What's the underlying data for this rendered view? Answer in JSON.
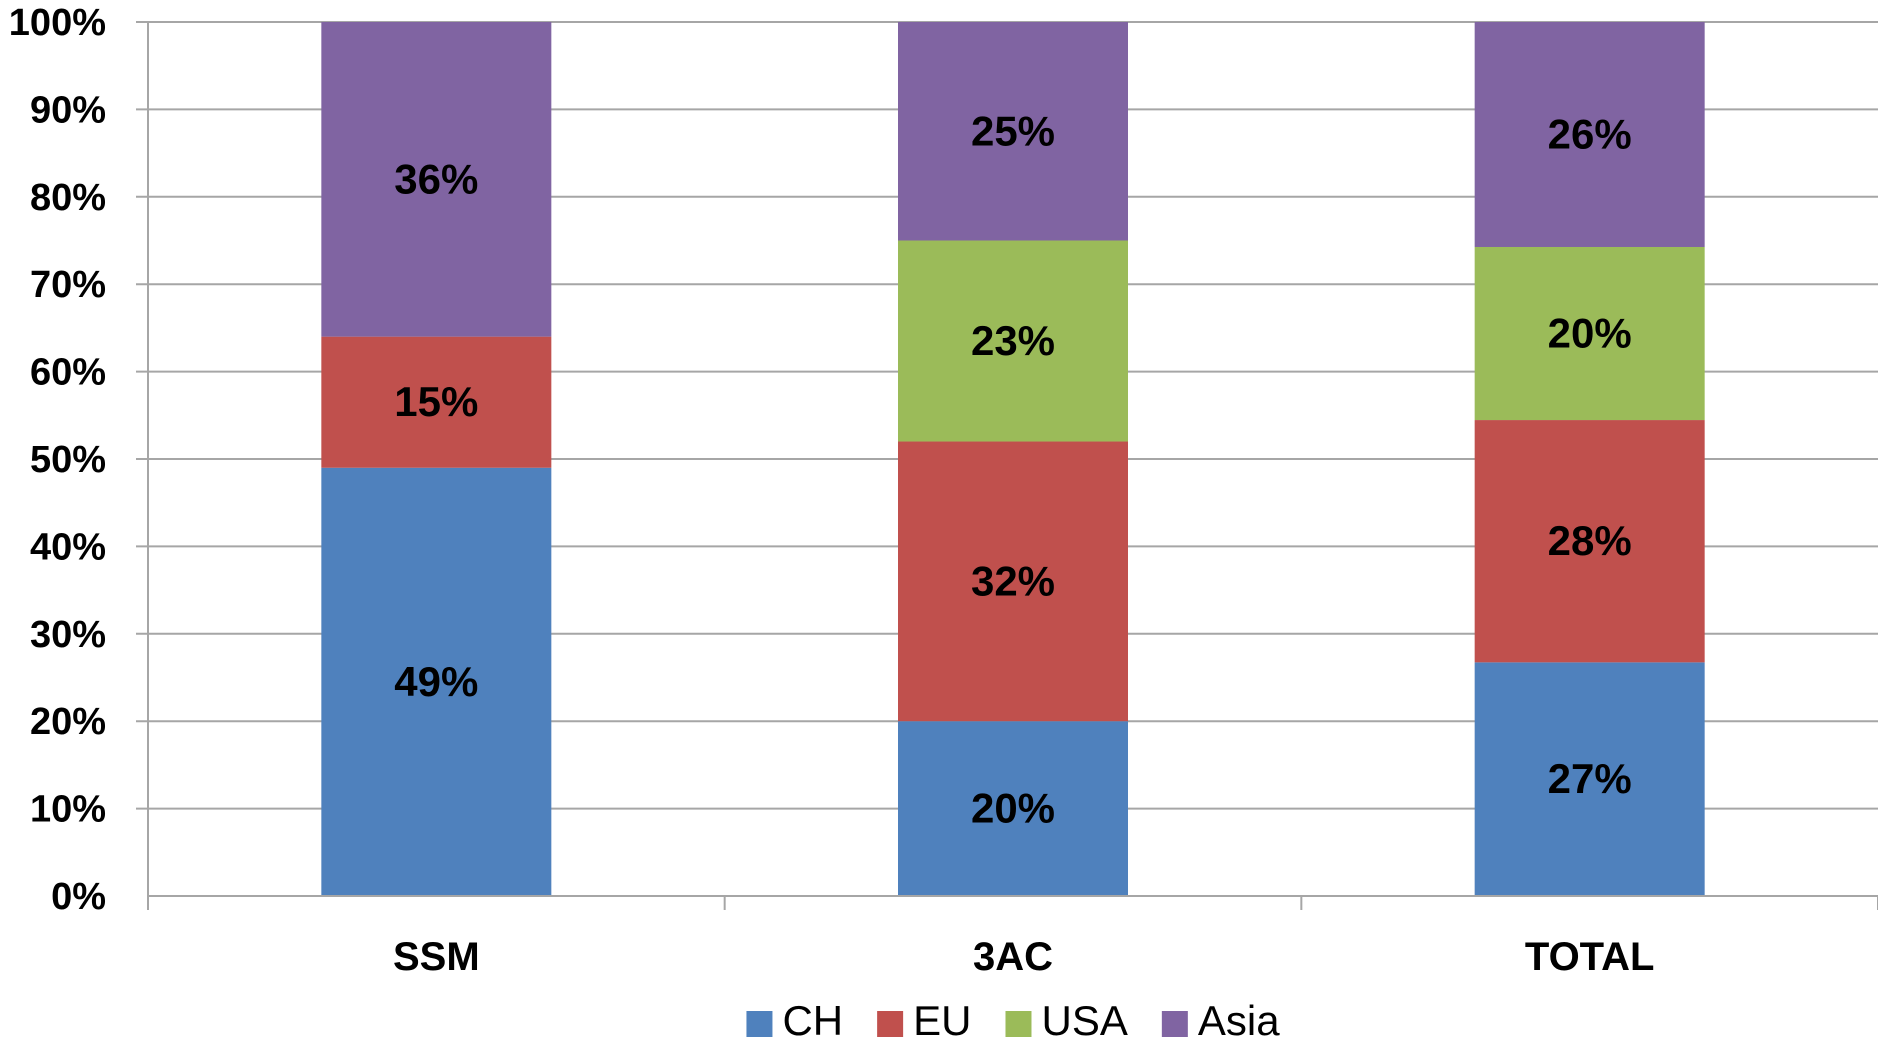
{
  "chart_data": {
    "type": "bar",
    "stacked": true,
    "percent_stacked": true,
    "title": "",
    "xlabel": "",
    "ylabel": "",
    "categories": [
      "SSM",
      "3AC",
      "TOTAL"
    ],
    "series": [
      {
        "name": "CH",
        "color": "#4f81bd",
        "values": [
          49,
          20,
          27
        ],
        "labels": [
          "49%",
          "20%",
          "27%"
        ]
      },
      {
        "name": "EU",
        "color": "#c0504d",
        "values": [
          15,
          32,
          28
        ],
        "labels": [
          "15%",
          "32%",
          "28%"
        ]
      },
      {
        "name": "USA",
        "color": "#9bbb59",
        "values": [
          0,
          23,
          20
        ],
        "labels": [
          "",
          "23%",
          "20%"
        ]
      },
      {
        "name": "Asia",
        "color": "#8064a2",
        "values": [
          36,
          25,
          26
        ],
        "labels": [
          "36%",
          "25%",
          "26%"
        ]
      }
    ],
    "ylim": [
      0,
      100
    ],
    "yticks": [
      0,
      10,
      20,
      30,
      40,
      50,
      60,
      70,
      80,
      90,
      100
    ],
    "ytick_labels": [
      "0%",
      "10%",
      "20%",
      "30%",
      "40%",
      "50%",
      "60%",
      "70%",
      "80%",
      "90%",
      "100%"
    ],
    "grid": true,
    "legend_position": "bottom"
  }
}
